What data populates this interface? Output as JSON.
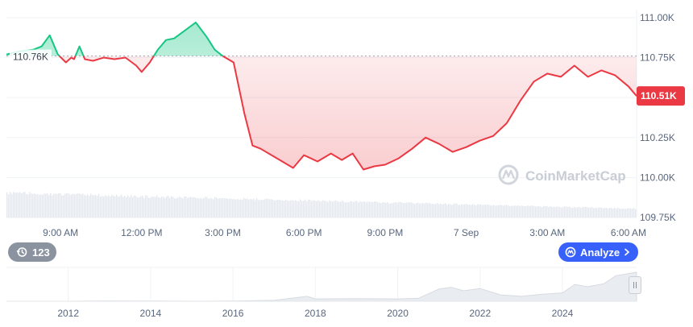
{
  "chart_data": {
    "type": "line",
    "y_ticks": [
      "111.00K",
      "110.75K",
      "110.50K",
      "110.25K",
      "110.00K",
      "109.75K"
    ],
    "y_tick_values": [
      111000,
      110750,
      110500,
      110250,
      110000,
      109750
    ],
    "ylim": [
      109750,
      111050
    ],
    "x_ticks": [
      "9:00 AM",
      "12:00 PM",
      "3:00 PM",
      "6:00 PM",
      "9:00 PM",
      "7 Sep",
      "3:00 AM",
      "6:00 AM"
    ],
    "x_tick_hours": [
      9,
      12,
      15,
      18,
      21,
      24,
      27,
      30
    ],
    "xlim_hours": [
      7.0,
      30.3
    ],
    "baseline": {
      "label": "110.76K",
      "value": 110760
    },
    "current": {
      "label": "110.51K",
      "value": 110510
    },
    "colors": {
      "above": "#16c784",
      "below": "#ea3943",
      "badge": "#ea3943",
      "axis_text": "#58667e"
    },
    "series": [
      {
        "x": [
          7.0,
          7.5,
          8.0,
          8.3,
          8.6,
          8.9,
          9.2,
          9.4,
          9.5,
          9.7,
          9.9,
          10.2,
          10.6,
          11.0,
          11.4,
          11.8,
          12.0,
          12.3,
          12.6,
          12.9,
          13.2,
          13.6,
          14.0,
          14.4,
          14.7,
          15.0,
          15.4,
          15.8,
          16.1,
          16.4,
          16.8,
          17.2,
          17.6,
          18.0,
          18.5,
          19.0,
          19.4,
          19.8,
          20.2,
          20.6,
          21.0,
          21.5,
          22.0,
          22.5,
          23.0,
          23.5,
          24.0,
          24.5,
          25.0,
          25.5,
          26.0,
          26.5,
          27.0,
          27.5,
          28.0,
          28.5,
          29.0,
          29.5,
          30.0,
          30.3
        ],
        "y": [
          110770,
          110790,
          110800,
          110820,
          110890,
          110770,
          110720,
          110750,
          110740,
          110820,
          110740,
          110730,
          110750,
          110740,
          110750,
          110700,
          110660,
          110720,
          110800,
          110860,
          110870,
          110920,
          110970,
          110880,
          110800,
          110760,
          110720,
          110400,
          110200,
          110180,
          110140,
          110100,
          110060,
          110140,
          110100,
          110150,
          110110,
          110150,
          110050,
          110070,
          110080,
          110120,
          110180,
          110250,
          110210,
          110160,
          110190,
          110230,
          110260,
          110340,
          110480,
          110600,
          110650,
          110630,
          110700,
          110630,
          110670,
          110640,
          110570,
          110510
        ]
      }
    ],
    "volume": {
      "start_level": 0.9,
      "end_level": 0.32
    },
    "navigator": {
      "x_ticks": [
        "2012",
        "2014",
        "2016",
        "2018",
        "2020",
        "2022",
        "2024"
      ],
      "x_tick_years": [
        2012,
        2014,
        2016,
        2018,
        2020,
        2022,
        2024
      ],
      "xlim_years": [
        2010.5,
        2025.8
      ],
      "x": [
        2010.5,
        2012.0,
        2013.0,
        2014.0,
        2015.0,
        2016.0,
        2017.0,
        2017.8,
        2018.0,
        2019.0,
        2020.0,
        2020.5,
        2021.0,
        2021.3,
        2021.6,
        2022.0,
        2022.5,
        2023.0,
        2023.5,
        2024.0,
        2024.3,
        2024.6,
        2025.0,
        2025.3,
        2025.8
      ],
      "y": [
        0,
        0,
        0.1,
        0.05,
        0.02,
        0.08,
        0.3,
        1.7,
        0.8,
        0.9,
        0.8,
        1.0,
        4.2,
        4.8,
        3.6,
        4.4,
        2.2,
        1.7,
        2.4,
        2.9,
        5.8,
        5.0,
        6.0,
        8.8,
        10.0
      ]
    }
  },
  "badges": {
    "history_count": "123",
    "analyze_label": "Analyze"
  },
  "watermark": {
    "text": "CoinMarketCap"
  }
}
